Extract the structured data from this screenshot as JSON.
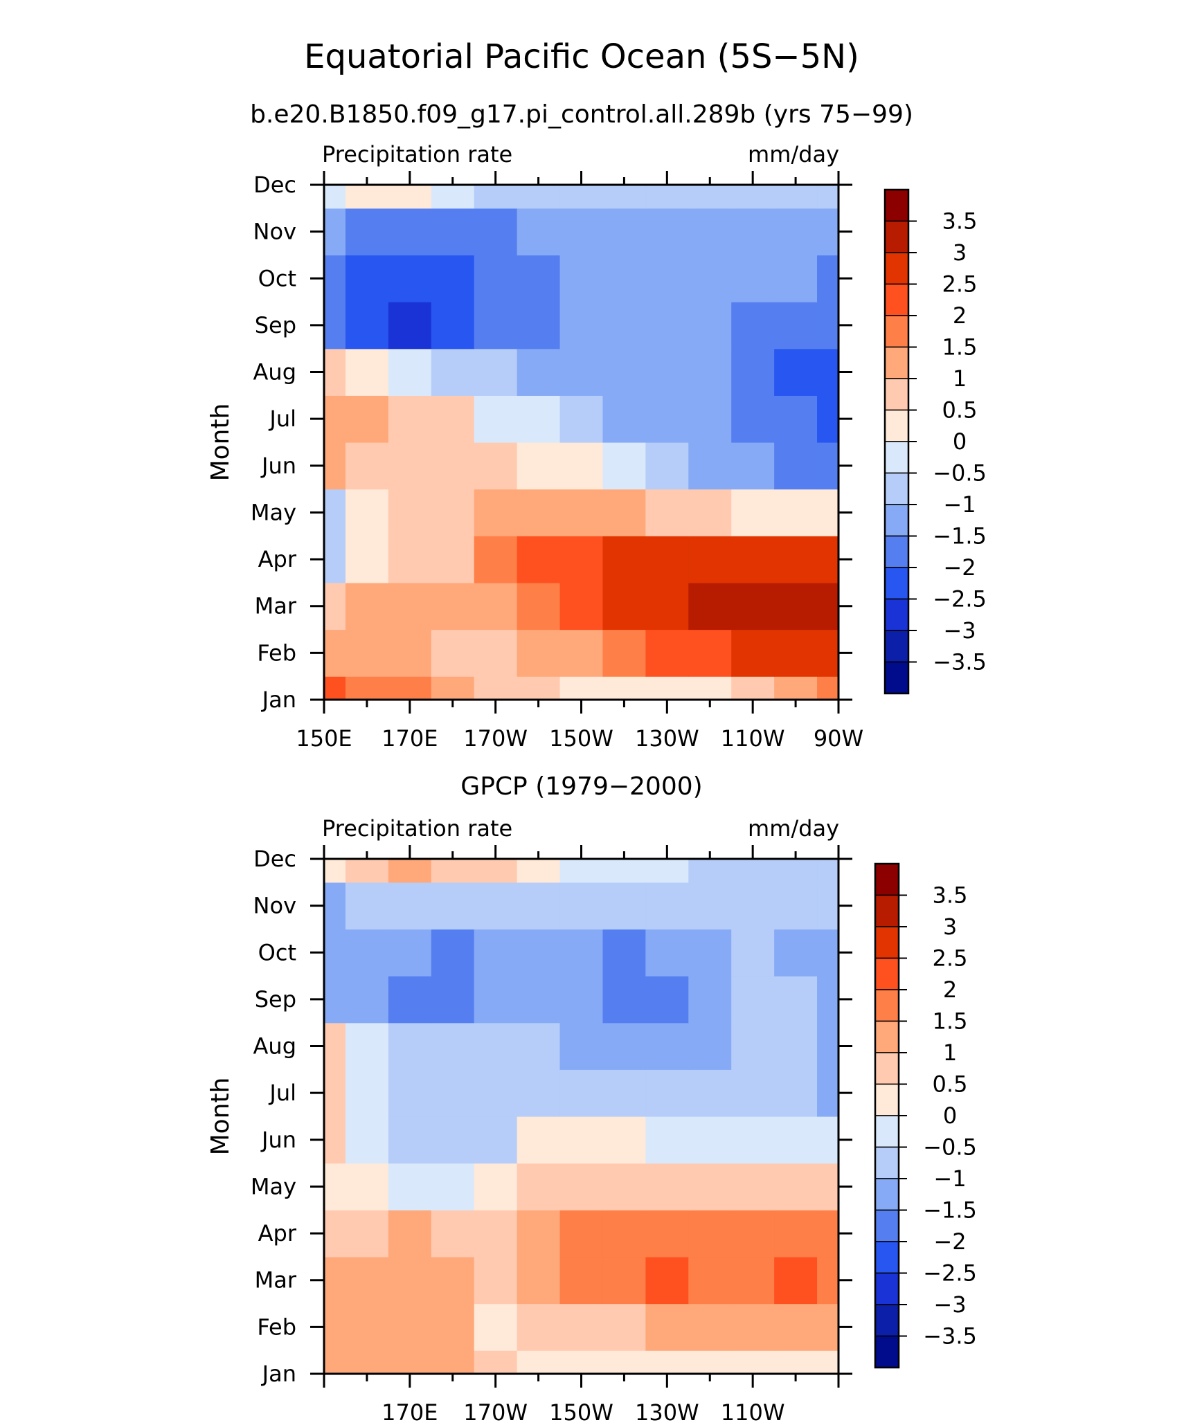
{
  "title": "Equatorial Pacific Ocean (5S−5N)",
  "subtitle": "b.e20.B1850.f09_g17.pi_control.all.289b (yrs 75−99)",
  "colorbar": {
    "labels": [
      "3.5",
      "3",
      "2.5",
      "2",
      "1.5",
      "1",
      "0.5",
      "0",
      "−0.5",
      "−1",
      "−1.5",
      "−2",
      "−2.5",
      "−3",
      "−3.5"
    ],
    "colors": [
      "#8c0000",
      "#b81c00",
      "#e13400",
      "#ff5020",
      "#ff7f48",
      "#ffa87a",
      "#ffcab0",
      "#ffe9d8",
      "#d9e9fb",
      "#b5cdf8",
      "#86aaf5",
      "#557ff0",
      "#2856f0",
      "#1a33d6",
      "#0c1fa8",
      "#000c8c"
    ]
  },
  "chart_data": [
    {
      "type": "heatmap",
      "panel_title": "",
      "left_label": "Precipitation rate",
      "right_label": "mm/day",
      "ylabel": "Month",
      "yticks": [
        "Dec",
        "Nov",
        "Oct",
        "Sep",
        "Aug",
        "Jul",
        "Jun",
        "May",
        "Apr",
        "Mar",
        "Feb",
        "Jan"
      ],
      "xticks": [
        "150E",
        "170E",
        "170W",
        "150W",
        "130W",
        "110W",
        "90W"
      ],
      "x": [
        150,
        160,
        170,
        180,
        190,
        200,
        210,
        220,
        230,
        240,
        250,
        260,
        270
      ],
      "y": [
        "Jan",
        "Feb",
        "Mar",
        "Apr",
        "May",
        "Jun",
        "Jul",
        "Aug",
        "Sep",
        "Oct",
        "Nov",
        "Dec"
      ],
      "z": [
        [
          2.0,
          1.7,
          1.5,
          1.2,
          0.9,
          0.6,
          0.4,
          0.3,
          0.3,
          0.4,
          0.6,
          1.0,
          1.6
        ],
        [
          1.3,
          1.2,
          1.0,
          0.8,
          0.9,
          1.1,
          1.3,
          1.6,
          2.0,
          2.3,
          2.6,
          2.9,
          2.9
        ],
        [
          0.9,
          1.2,
          1.3,
          1.2,
          1.3,
          1.7,
          2.1,
          2.6,
          2.9,
          3.1,
          3.2,
          3.2,
          3.1
        ],
        [
          -0.6,
          0.4,
          0.6,
          0.9,
          1.6,
          2.0,
          2.3,
          2.6,
          2.8,
          2.8,
          2.7,
          2.6,
          2.6
        ],
        [
          -0.8,
          0.3,
          0.5,
          0.8,
          1.1,
          1.3,
          1.2,
          1.0,
          0.8,
          0.6,
          0.4,
          0.3,
          0.2
        ],
        [
          1.2,
          0.7,
          0.5,
          0.6,
          0.5,
          0.3,
          0.1,
          -0.3,
          -0.8,
          -1.3,
          -1.5,
          -1.7,
          -1.9
        ],
        [
          1.3,
          1.1,
          0.9,
          0.6,
          -0.1,
          -0.5,
          -0.9,
          -1.2,
          -1.4,
          -1.5,
          -1.6,
          -1.9,
          -2.1
        ],
        [
          0.5,
          0.2,
          -0.3,
          -0.7,
          -1.0,
          -1.2,
          -1.4,
          -1.5,
          -1.5,
          -1.5,
          -1.7,
          -2.1,
          -2.1
        ],
        [
          -2.0,
          -2.5,
          -2.6,
          -2.5,
          -2.0,
          -1.6,
          -1.4,
          -1.4,
          -1.4,
          -1.4,
          -1.6,
          -2.0,
          -2.0
        ],
        [
          -1.7,
          -2.3,
          -2.5,
          -2.3,
          -1.8,
          -1.6,
          -1.4,
          -1.3,
          -1.3,
          -1.3,
          -1.3,
          -1.4,
          -1.6
        ],
        [
          -1.4,
          -1.9,
          -2.0,
          -1.9,
          -1.7,
          -1.5,
          -1.3,
          -1.2,
          -1.2,
          -1.1,
          -1.1,
          -1.1,
          -1.2
        ],
        [
          -0.1,
          0.3,
          0.2,
          -0.3,
          -0.7,
          -0.9,
          -1.0,
          -1.0,
          -1.0,
          -1.0,
          -1.0,
          -0.9,
          -1.0
        ]
      ]
    },
    {
      "type": "heatmap",
      "panel_title": "GPCP (1979−2000)",
      "left_label": "Precipitation rate",
      "right_label": "mm/day",
      "ylabel": "Month",
      "yticks": [
        "Dec",
        "Nov",
        "Oct",
        "Sep",
        "Aug",
        "Jul",
        "Jun",
        "May",
        "Apr",
        "Mar",
        "Feb",
        "Jan"
      ],
      "xticks": [
        "170E",
        "170W",
        "150W",
        "130W",
        "110W"
      ],
      "x": [
        150,
        160,
        170,
        180,
        190,
        200,
        210,
        220,
        230,
        240,
        250,
        260,
        270
      ],
      "y": [
        "Jan",
        "Feb",
        "Mar",
        "Apr",
        "May",
        "Jun",
        "Jul",
        "Aug",
        "Sep",
        "Oct",
        "Nov",
        "Dec"
      ],
      "z": [
        [
          1.0,
          1.2,
          1.3,
          1.1,
          0.6,
          0.4,
          0.2,
          0.2,
          0.2,
          0.1,
          0.1,
          0.2,
          0.4
        ],
        [
          1.1,
          1.3,
          1.4,
          1.1,
          0.4,
          0.6,
          0.8,
          0.9,
          1.0,
          1.1,
          1.1,
          1.2,
          1.3
        ],
        [
          1.2,
          1.4,
          1.3,
          1.2,
          0.7,
          1.3,
          1.6,
          1.8,
          2.0,
          1.8,
          1.9,
          2.0,
          1.9
        ],
        [
          0.6,
          0.9,
          1.0,
          0.8,
          0.8,
          1.2,
          1.5,
          1.7,
          1.8,
          1.7,
          1.6,
          1.8,
          1.9
        ],
        [
          0.2,
          0.1,
          -0.3,
          -0.4,
          0.3,
          0.6,
          0.7,
          0.8,
          0.8,
          0.7,
          0.6,
          0.6,
          0.5
        ],
        [
          0.6,
          -0.1,
          -0.6,
          -0.7,
          -0.6,
          0.1,
          0.2,
          0.1,
          -0.1,
          -0.2,
          -0.3,
          -0.4,
          -0.5
        ],
        [
          0.6,
          -0.1,
          -0.6,
          -0.7,
          -0.8,
          -0.6,
          -0.7,
          -0.8,
          -0.8,
          -0.7,
          -0.8,
          -1.0,
          -1.2
        ],
        [
          0.5,
          -0.4,
          -0.8,
          -1.0,
          -1.0,
          -1.0,
          -1.3,
          -1.4,
          -1.4,
          -1.2,
          -1.0,
          -1.0,
          -1.2
        ],
        [
          -1.3,
          -1.2,
          -1.6,
          -2.0,
          -1.5,
          -1.2,
          -1.4,
          -1.6,
          -1.6,
          -1.5,
          -1.0,
          -1.0,
          -1.4
        ],
        [
          -1.3,
          -1.1,
          -1.4,
          -1.8,
          -1.4,
          -1.2,
          -1.4,
          -1.6,
          -1.5,
          -1.3,
          -1.0,
          -1.1,
          -1.4
        ],
        [
          -1.3,
          -0.8,
          -0.6,
          -0.8,
          -0.9,
          -0.8,
          -0.7,
          -0.6,
          -0.6,
          -0.7,
          -0.8,
          -0.8,
          -0.9
        ],
        [
          0.3,
          0.7,
          1.3,
          0.9,
          0.6,
          0.1,
          -0.3,
          -0.4,
          -0.5,
          -0.6,
          -0.6,
          -0.6,
          -0.7
        ]
      ]
    }
  ]
}
